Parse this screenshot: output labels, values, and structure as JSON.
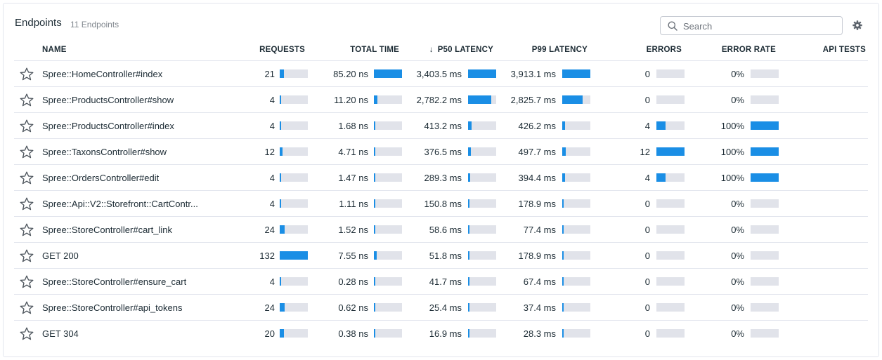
{
  "header": {
    "title": "Endpoints",
    "subtitle": "11 Endpoints",
    "search_placeholder": "Search"
  },
  "columns": {
    "name": "NAME",
    "requests": "REQUESTS",
    "total_time": "TOTAL TIME",
    "p50": "P50 LATENCY",
    "p50_sort": "↓",
    "p99": "P99 LATENCY",
    "errors": "ERRORS",
    "error_rate": "ERROR RATE",
    "api_tests": "API TESTS"
  },
  "colors": {
    "bar_fill": "#1a8ee5",
    "bar_track": "#e1e3ea"
  },
  "rows": [
    {
      "name": "Spree::HomeController#index",
      "requests": "21",
      "requests_fill": 0.16,
      "total_time": "85.20 ns",
      "total_fill": 1.0,
      "p50": "3,403.5 ms",
      "p50_fill": 1.0,
      "p99": "3,913.1 ms",
      "p99_fill": 1.0,
      "errors": "0",
      "errors_fill": 0,
      "error_rate": "0%",
      "error_rate_fill": 0
    },
    {
      "name": "Spree::ProductsController#show",
      "requests": "4",
      "requests_fill": 0.03,
      "total_time": "11.20 ns",
      "total_fill": 0.13,
      "p50": "2,782.2 ms",
      "p50_fill": 0.82,
      "p99": "2,825.7 ms",
      "p99_fill": 0.72,
      "errors": "0",
      "errors_fill": 0,
      "error_rate": "0%",
      "error_rate_fill": 0
    },
    {
      "name": "Spree::ProductsController#index",
      "requests": "4",
      "requests_fill": 0.03,
      "total_time": "1.68 ns",
      "total_fill": 0.02,
      "p50": "413.2 ms",
      "p50_fill": 0.12,
      "p99": "426.2 ms",
      "p99_fill": 0.11,
      "errors": "4",
      "errors_fill": 0.33,
      "error_rate": "100%",
      "error_rate_fill": 1.0
    },
    {
      "name": "Spree::TaxonsController#show",
      "requests": "12",
      "requests_fill": 0.09,
      "total_time": "4.71 ns",
      "total_fill": 0.06,
      "p50": "376.5 ms",
      "p50_fill": 0.11,
      "p99": "497.7 ms",
      "p99_fill": 0.13,
      "errors": "12",
      "errors_fill": 1.0,
      "error_rate": "100%",
      "error_rate_fill": 1.0
    },
    {
      "name": "Spree::OrdersController#edit",
      "requests": "4",
      "requests_fill": 0.03,
      "total_time": "1.47 ns",
      "total_fill": 0.02,
      "p50": "289.3 ms",
      "p50_fill": 0.08,
      "p99": "394.4 ms",
      "p99_fill": 0.1,
      "errors": "4",
      "errors_fill": 0.33,
      "error_rate": "100%",
      "error_rate_fill": 1.0
    },
    {
      "name": "Spree::Api::V2::Storefront::CartContr...",
      "requests": "4",
      "requests_fill": 0.03,
      "total_time": "1.11 ns",
      "total_fill": 0.01,
      "p50": "150.8 ms",
      "p50_fill": 0.04,
      "p99": "178.9 ms",
      "p99_fill": 0.05,
      "errors": "0",
      "errors_fill": 0,
      "error_rate": "0%",
      "error_rate_fill": 0
    },
    {
      "name": "Spree::StoreController#cart_link",
      "requests": "24",
      "requests_fill": 0.18,
      "total_time": "1.52 ns",
      "total_fill": 0.02,
      "p50": "58.6 ms",
      "p50_fill": 0.02,
      "p99": "77.4 ms",
      "p99_fill": 0.02,
      "errors": "0",
      "errors_fill": 0,
      "error_rate": "0%",
      "error_rate_fill": 0
    },
    {
      "name": "GET 200",
      "requests": "132",
      "requests_fill": 1.0,
      "total_time": "7.55 ns",
      "total_fill": 0.09,
      "p50": "51.8 ms",
      "p50_fill": 0.02,
      "p99": "178.9 ms",
      "p99_fill": 0.05,
      "errors": "0",
      "errors_fill": 0,
      "error_rate": "0%",
      "error_rate_fill": 0
    },
    {
      "name": "Spree::StoreController#ensure_cart",
      "requests": "4",
      "requests_fill": 0.03,
      "total_time": "0.28 ns",
      "total_fill": 0.01,
      "p50": "41.7 ms",
      "p50_fill": 0.01,
      "p99": "67.4 ms",
      "p99_fill": 0.02,
      "errors": "0",
      "errors_fill": 0,
      "error_rate": "0%",
      "error_rate_fill": 0
    },
    {
      "name": "Spree::StoreController#api_tokens",
      "requests": "24",
      "requests_fill": 0.18,
      "total_time": "0.62 ns",
      "total_fill": 0.01,
      "p50": "25.4 ms",
      "p50_fill": 0.01,
      "p99": "37.4 ms",
      "p99_fill": 0.01,
      "errors": "0",
      "errors_fill": 0,
      "error_rate": "0%",
      "error_rate_fill": 0
    },
    {
      "name": "GET 304",
      "requests": "20",
      "requests_fill": 0.15,
      "total_time": "0.38 ns",
      "total_fill": 0.01,
      "p50": "16.9 ms",
      "p50_fill": 0.01,
      "p99": "28.3 ms",
      "p99_fill": 0.01,
      "errors": "0",
      "errors_fill": 0,
      "error_rate": "0%",
      "error_rate_fill": 0
    }
  ]
}
